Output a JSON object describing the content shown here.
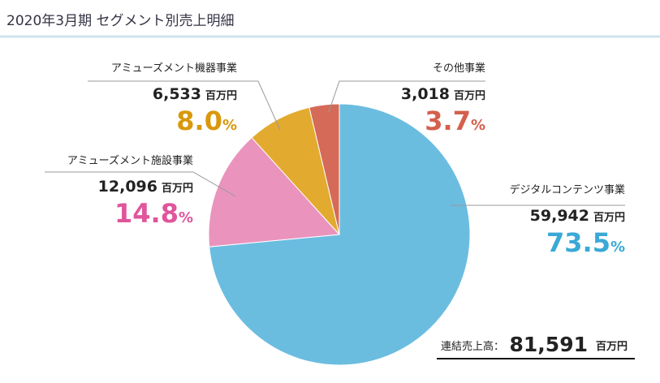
{
  "chart_data": {
    "type": "pie",
    "title": "2020年3月期 セグメント別売上明細",
    "categories": [
      "デジタルコンテンツ事業",
      "アミューズメント施設事業",
      "アミューズメント機器事業",
      "その他事業"
    ],
    "values": [
      59942,
      12096,
      6533,
      3018
    ],
    "value_labels": [
      "59,942",
      "12,096",
      "6,533",
      "3,018"
    ],
    "unit": "百万円",
    "percents": [
      73.5,
      14.8,
      8,
      3.7
    ],
    "percent_labels": [
      "73.5",
      "14.8",
      "8.0",
      "3.7"
    ],
    "percent_unit": "%",
    "colors": [
      "#6bbde0",
      "#ea93bd",
      "#e2aa2f",
      "#d46a57"
    ],
    "label_colors": [
      "#3aa9d6",
      "#e0559c",
      "#d9980c",
      "#d4604d"
    ],
    "total": {
      "label": "連結売上高：",
      "value_label": "81,591",
      "unit": "百万円"
    }
  }
}
